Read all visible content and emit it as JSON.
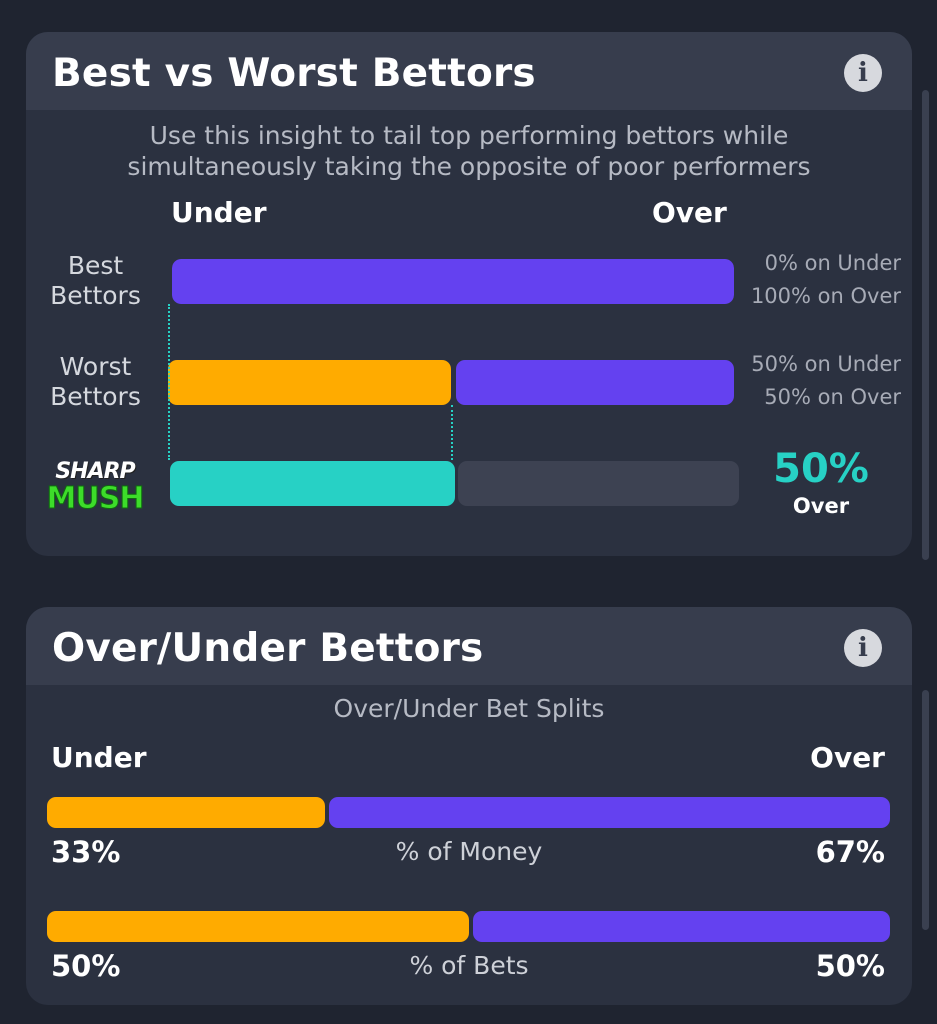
{
  "best_worst": {
    "title": "Best vs Worst Bettors",
    "subtitle_line1": "Use this insight to tail top performing bettors while",
    "subtitle_line2": "simultaneously taking the opposite of poor performers",
    "under_label": "Under",
    "over_label": "Over",
    "rows": [
      {
        "label_line1": "Best",
        "label_line2": "Bettors",
        "under_fraction": 0,
        "note_under": "0% on Under",
        "note_over": "100% on Over"
      },
      {
        "label_line1": "Worst",
        "label_line2": "Bettors",
        "under_fraction": 0.5,
        "note_under": "50% on Under",
        "note_over": "50% on Over"
      }
    ],
    "sharp_mush": {
      "logo_line1": "SHARP",
      "logo_line2": "MUSH",
      "fraction": 0.5,
      "value": "50%",
      "side": "Over"
    }
  },
  "over_under": {
    "title": "Over/Under Bettors",
    "subtitle": "Over/Under Bet Splits",
    "under_label": "Under",
    "over_label": "Over",
    "splits": [
      {
        "caption": "% of Money",
        "under_fraction": 0.33,
        "under_pct": "33%",
        "over_pct": "67%"
      },
      {
        "caption": "% of Bets",
        "under_fraction": 0.5,
        "under_pct": "50%",
        "over_pct": "50%"
      }
    ]
  },
  "colors": {
    "under": "#ffab00",
    "over": "#6441f0",
    "sharp": "#27d1c5",
    "card": "#2b3140",
    "header": "#373d4d"
  },
  "icons": {
    "info": "info-icon"
  },
  "info_glyph": "i"
}
